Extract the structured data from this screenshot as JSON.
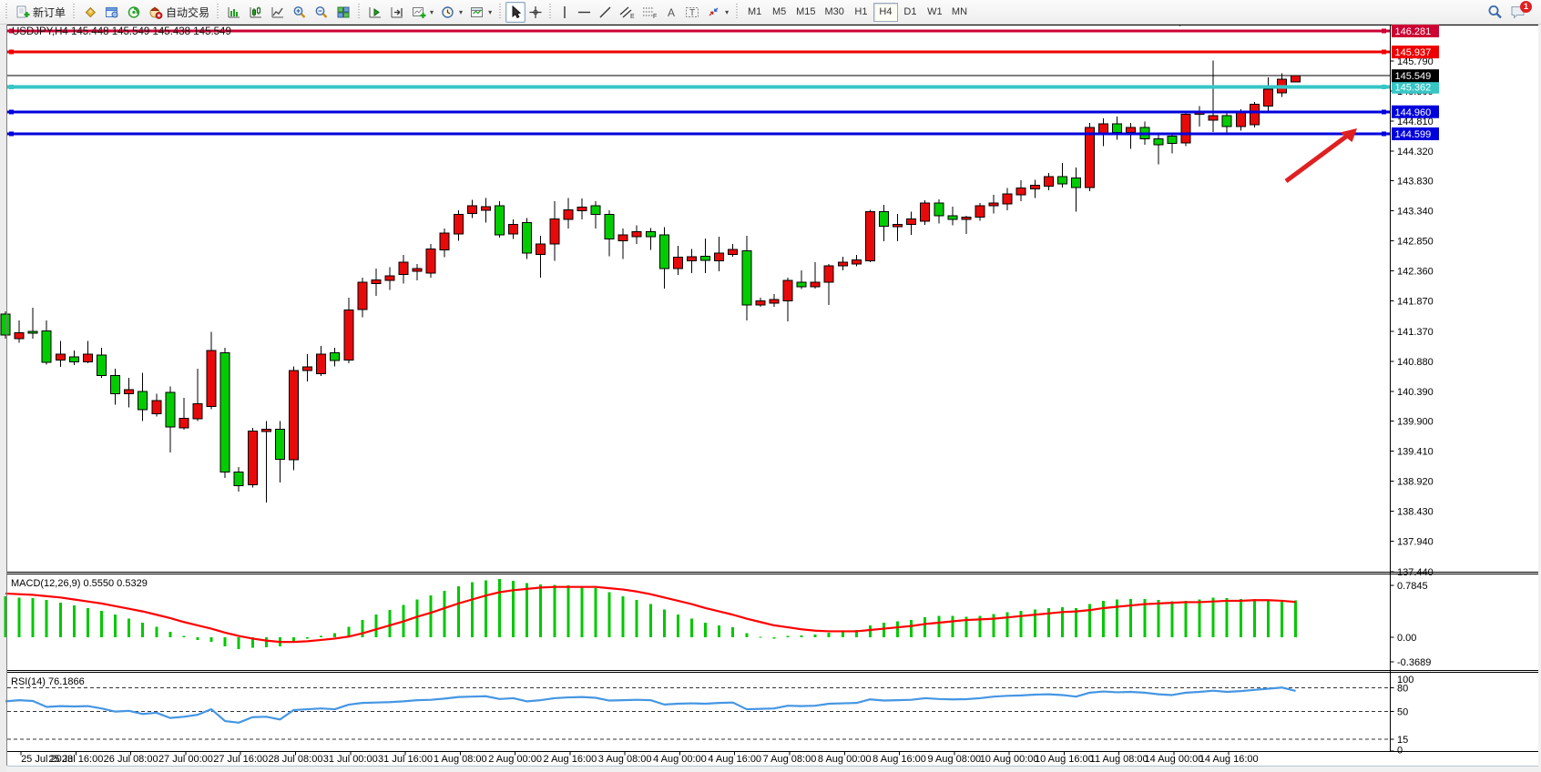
{
  "toolbar": {
    "new_order_label": "新订单",
    "autotrade_label": "自动交易",
    "timeframes": [
      "M1",
      "M5",
      "M15",
      "M30",
      "H1",
      "H4",
      "D1",
      "W1",
      "MN"
    ],
    "active_timeframe": "H4",
    "notification_count": "1"
  },
  "chart": {
    "title": "USDJPY,H4 145.448 145.549 145.438 145.549",
    "symbol": "USDJPY",
    "period": "H4",
    "last_ohlc": {
      "open": "145.448",
      "high": "145.549",
      "low": "145.438",
      "close": "145.549"
    },
    "current_price": "145.549",
    "price_axis_ticks": [
      "145.790",
      "145.300",
      "144.810",
      "144.320",
      "143.830",
      "143.340",
      "142.850",
      "142.360",
      "141.870",
      "141.370",
      "140.880",
      "140.390",
      "139.900",
      "139.410",
      "138.920",
      "138.430",
      "137.940",
      "137.440"
    ],
    "price_lines": [
      {
        "label": "146.281",
        "price": 146.281,
        "color": "#cc0033",
        "width": 3,
        "handles": true
      },
      {
        "label": "145.937",
        "price": 145.937,
        "color": "#ee0000",
        "width": 3,
        "handles": true
      },
      {
        "label": "145.362",
        "price": 145.362,
        "color": "#36c6c6",
        "width": 4,
        "handles": true
      },
      {
        "label": "144.960",
        "price": 144.96,
        "color": "#0000dd",
        "width": 3,
        "handles": true
      },
      {
        "label": "144.599",
        "price": 144.599,
        "color": "#0000dd",
        "width": 3,
        "handles": true
      }
    ],
    "current_price_line": {
      "label": "145.549",
      "price": 145.549,
      "color": "#000000",
      "badge_bg": "#000000"
    },
    "time_labels": [
      "25 Jul 2023",
      "25 Jul 16:00",
      "26 Jul 08:00",
      "27 Jul 00:00",
      "27 Jul 16:00",
      "28 Jul 08:00",
      "31 Jul 00:00",
      "31 Jul 16:00",
      "1 Aug 08:00",
      "2 Aug 00:00",
      "2 Aug 16:00",
      "3 Aug 08:00",
      "4 Aug 00:00",
      "4 Aug 16:00",
      "7 Aug 08:00",
      "8 Aug 00:00",
      "8 Aug 16:00",
      "9 Aug 08:00",
      "10 Aug 00:00",
      "10 Aug 16:00",
      "11 Aug 08:00",
      "14 Aug 00:00",
      "14 Aug 16:00"
    ]
  },
  "macd": {
    "label": "MACD(12,26,9) 0.5550 0.5329",
    "axis_labels": [
      {
        "label": "0.7845",
        "value": 0.7845
      },
      {
        "label": "0.00",
        "value": 0
      },
      {
        "label": "-0.3689",
        "value": -0.3689
      }
    ]
  },
  "rsi": {
    "label": "RSI(14) 76.1866",
    "axis_labels": [
      {
        "label": "100",
        "value": 100
      },
      {
        "label": "80",
        "value": 80
      },
      {
        "label": "50",
        "value": 50
      },
      {
        "label": "15",
        "value": 15
      },
      {
        "label": "0",
        "value": 0
      }
    ],
    "dashed_levels": [
      80,
      50,
      15
    ]
  },
  "annotation": {
    "type": "trend-arrow",
    "color": "#e02020"
  },
  "chart_data": {
    "type": "candlestick",
    "title": "USDJPY H4",
    "bull_color": "#e80a0a",
    "bear_color": "#00cc00",
    "macd_color": "#00c800",
    "macd_signal_color": "#ff0000",
    "rsi_color": "#4596e3",
    "candles": [
      [
        141.65,
        141.7,
        141.25,
        141.31
      ],
      [
        141.25,
        141.55,
        141.18,
        141.35
      ],
      [
        141.37,
        141.76,
        141.25,
        141.34
      ],
      [
        141.38,
        141.55,
        140.83,
        140.86
      ],
      [
        140.9,
        141.21,
        140.79,
        141.0
      ],
      [
        140.95,
        141.06,
        140.82,
        140.87
      ],
      [
        140.87,
        141.21,
        140.85,
        141.0
      ],
      [
        140.98,
        141.1,
        140.61,
        140.65
      ],
      [
        140.65,
        140.76,
        140.17,
        140.35
      ],
      [
        140.35,
        140.61,
        140.13,
        140.42
      ],
      [
        140.39,
        140.69,
        139.9,
        140.09
      ],
      [
        140.02,
        140.35,
        139.98,
        140.24
      ],
      [
        140.37,
        140.47,
        139.39,
        139.81
      ],
      [
        139.79,
        140.28,
        139.76,
        139.95
      ],
      [
        139.94,
        140.76,
        139.9,
        140.19
      ],
      [
        140.14,
        141.36,
        140.1,
        141.06
      ],
      [
        141.02,
        141.1,
        138.97,
        139.07
      ],
      [
        139.07,
        139.15,
        138.75,
        138.85
      ],
      [
        138.86,
        139.79,
        138.82,
        139.74
      ],
      [
        139.73,
        139.9,
        138.57,
        139.77
      ],
      [
        139.77,
        139.9,
        138.9,
        139.28
      ],
      [
        139.27,
        140.8,
        139.1,
        140.73
      ],
      [
        140.73,
        141.0,
        140.55,
        140.79
      ],
      [
        140.68,
        141.13,
        140.64,
        141.0
      ],
      [
        141.02,
        141.1,
        140.8,
        140.89
      ],
      [
        140.9,
        141.92,
        140.85,
        141.72
      ],
      [
        141.73,
        142.25,
        141.6,
        142.17
      ],
      [
        142.15,
        142.4,
        141.95,
        142.21
      ],
      [
        142.2,
        142.42,
        142.05,
        142.28
      ],
      [
        142.3,
        142.62,
        142.15,
        142.5
      ],
      [
        142.35,
        142.47,
        142.2,
        142.4
      ],
      [
        142.32,
        142.8,
        142.25,
        142.72
      ],
      [
        142.7,
        143.05,
        142.58,
        142.98
      ],
      [
        142.96,
        143.35,
        142.85,
        143.28
      ],
      [
        143.3,
        143.52,
        143.22,
        143.42
      ],
      [
        143.35,
        143.55,
        143.15,
        143.41
      ],
      [
        143.42,
        143.5,
        142.9,
        142.95
      ],
      [
        142.96,
        143.2,
        142.88,
        143.12
      ],
      [
        143.15,
        143.22,
        142.55,
        142.65
      ],
      [
        142.63,
        142.93,
        142.25,
        142.8
      ],
      [
        142.8,
        143.5,
        142.52,
        143.21
      ],
      [
        143.2,
        143.55,
        143.05,
        143.36
      ],
      [
        143.34,
        143.54,
        143.2,
        143.4
      ],
      [
        143.42,
        143.5,
        143.05,
        143.28
      ],
      [
        143.28,
        143.35,
        142.6,
        142.88
      ],
      [
        142.85,
        143.05,
        142.55,
        142.95
      ],
      [
        142.92,
        143.1,
        142.8,
        143.0
      ],
      [
        143.0,
        143.06,
        142.7,
        142.92
      ],
      [
        142.95,
        143.07,
        142.07,
        142.4
      ],
      [
        142.4,
        142.77,
        142.29,
        142.58
      ],
      [
        142.52,
        142.72,
        142.32,
        142.59
      ],
      [
        142.6,
        142.89,
        142.32,
        142.53
      ],
      [
        142.52,
        142.92,
        142.35,
        142.65
      ],
      [
        142.63,
        142.8,
        142.59,
        142.71
      ],
      [
        142.69,
        142.93,
        141.55,
        141.8
      ],
      [
        141.8,
        141.92,
        141.77,
        141.87
      ],
      [
        141.83,
        141.98,
        141.77,
        141.89
      ],
      [
        141.87,
        142.25,
        141.53,
        142.2
      ],
      [
        142.17,
        142.37,
        142.06,
        142.1
      ],
      [
        142.1,
        142.5,
        142.07,
        142.17
      ],
      [
        142.17,
        142.47,
        141.8,
        142.44
      ],
      [
        142.44,
        142.59,
        142.37,
        142.5
      ],
      [
        142.47,
        142.62,
        142.43,
        142.54
      ],
      [
        142.52,
        143.36,
        142.5,
        143.33
      ],
      [
        143.33,
        143.44,
        142.84,
        143.09
      ],
      [
        143.08,
        143.29,
        142.84,
        143.12
      ],
      [
        143.12,
        143.33,
        142.95,
        143.21
      ],
      [
        143.17,
        143.51,
        143.11,
        143.47
      ],
      [
        143.47,
        143.53,
        143.13,
        143.26
      ],
      [
        143.26,
        143.41,
        143.1,
        143.2
      ],
      [
        143.2,
        143.26,
        142.96,
        143.24
      ],
      [
        143.24,
        143.47,
        143.18,
        143.42
      ],
      [
        143.42,
        143.6,
        143.3,
        143.47
      ],
      [
        143.45,
        143.71,
        143.35,
        143.62
      ],
      [
        143.6,
        143.84,
        143.5,
        143.71
      ],
      [
        143.7,
        143.85,
        143.55,
        143.76
      ],
      [
        143.74,
        143.96,
        143.68,
        143.9
      ],
      [
        143.9,
        144.12,
        143.72,
        143.78
      ],
      [
        143.88,
        144.05,
        143.33,
        143.72
      ],
      [
        143.72,
        144.78,
        143.66,
        144.7
      ],
      [
        144.6,
        144.85,
        144.4,
        144.76
      ],
      [
        144.76,
        144.88,
        144.5,
        144.62
      ],
      [
        144.62,
        144.78,
        144.35,
        144.7
      ],
      [
        144.7,
        144.8,
        144.42,
        144.52
      ],
      [
        144.52,
        144.6,
        144.1,
        144.42
      ],
      [
        144.56,
        144.62,
        144.28,
        144.44
      ],
      [
        144.45,
        144.97,
        144.4,
        144.92
      ],
      [
        144.92,
        145.05,
        144.72,
        144.95
      ],
      [
        144.82,
        145.8,
        144.63,
        144.9
      ],
      [
        144.9,
        144.96,
        144.62,
        144.72
      ],
      [
        144.72,
        145.0,
        144.65,
        144.94
      ],
      [
        144.75,
        145.12,
        144.7,
        145.08
      ],
      [
        145.05,
        145.52,
        144.98,
        145.33
      ],
      [
        145.27,
        145.59,
        145.2,
        145.49
      ],
      [
        145.448,
        145.549,
        145.438,
        145.549
      ]
    ],
    "macd_histogram": [
      0.62,
      0.6,
      0.59,
      0.56,
      0.52,
      0.48,
      0.44,
      0.4,
      0.34,
      0.28,
      0.22,
      0.16,
      0.08,
      0.02,
      -0.04,
      -0.07,
      -0.14,
      -0.18,
      -0.16,
      -0.15,
      -0.14,
      -0.07,
      -0.02,
      0.02,
      0.06,
      0.16,
      0.26,
      0.34,
      0.41,
      0.49,
      0.57,
      0.63,
      0.7,
      0.77,
      0.83,
      0.86,
      0.88,
      0.85,
      0.82,
      0.8,
      0.79,
      0.78,
      0.77,
      0.74,
      0.68,
      0.62,
      0.56,
      0.5,
      0.42,
      0.34,
      0.28,
      0.22,
      0.18,
      0.15,
      0.06,
      0.01,
      -0.02,
      0.02,
      0.03,
      0.04,
      0.07,
      0.09,
      0.11,
      0.18,
      0.22,
      0.24,
      0.26,
      0.3,
      0.32,
      0.32,
      0.31,
      0.32,
      0.35,
      0.38,
      0.4,
      0.42,
      0.44,
      0.45,
      0.44,
      0.5,
      0.55,
      0.57,
      0.58,
      0.58,
      0.56,
      0.54,
      0.55,
      0.57,
      0.6,
      0.59,
      0.58,
      0.58,
      0.57,
      0.56,
      0.555
    ],
    "macd_signal": [
      0.66,
      0.65,
      0.64,
      0.62,
      0.6,
      0.57,
      0.54,
      0.51,
      0.47,
      0.43,
      0.39,
      0.34,
      0.29,
      0.23,
      0.18,
      0.13,
      0.07,
      0.02,
      -0.02,
      -0.05,
      -0.07,
      -0.07,
      -0.06,
      -0.04,
      -0.02,
      0.01,
      0.06,
      0.12,
      0.18,
      0.24,
      0.31,
      0.37,
      0.44,
      0.51,
      0.57,
      0.63,
      0.68,
      0.71,
      0.73,
      0.75,
      0.76,
      0.76,
      0.76,
      0.76,
      0.74,
      0.72,
      0.69,
      0.65,
      0.6,
      0.55,
      0.5,
      0.44,
      0.39,
      0.34,
      0.28,
      0.23,
      0.18,
      0.15,
      0.12,
      0.1,
      0.09,
      0.09,
      0.09,
      0.11,
      0.13,
      0.15,
      0.17,
      0.2,
      0.22,
      0.24,
      0.26,
      0.27,
      0.28,
      0.3,
      0.32,
      0.34,
      0.36,
      0.38,
      0.39,
      0.41,
      0.44,
      0.46,
      0.48,
      0.5,
      0.51,
      0.52,
      0.53,
      0.53,
      0.54,
      0.55,
      0.55,
      0.56,
      0.56,
      0.55,
      0.5329
    ],
    "rsi": [
      63,
      64.5,
      63.5,
      56,
      57,
      56.5,
      57,
      54,
      50,
      51,
      47,
      48.5,
      42,
      43.5,
      46,
      53,
      38,
      36,
      43,
      43.5,
      40,
      52,
      53,
      54,
      53,
      58.8,
      61,
      61.5,
      62,
      63,
      64.5,
      65,
      66.5,
      68.5,
      69,
      69.5,
      66,
      67,
      63,
      64.5,
      67,
      68,
      68.5,
      67.5,
      64,
      64.5,
      65,
      64.5,
      59,
      60,
      60.5,
      60,
      61,
      61.5,
      53,
      53.5,
      54,
      57.5,
      57,
      57.5,
      60,
      60.5,
      61,
      65.5,
      64,
      64.5,
      65,
      67,
      66,
      65.5,
      65.8,
      67,
      69,
      70,
      70.5,
      71.5,
      72,
      71,
      69,
      74,
      75.5,
      74.5,
      75,
      74,
      72,
      71,
      74,
      75,
      76.5,
      75,
      76,
      77.5,
      79,
      80.5,
      76.19
    ]
  }
}
